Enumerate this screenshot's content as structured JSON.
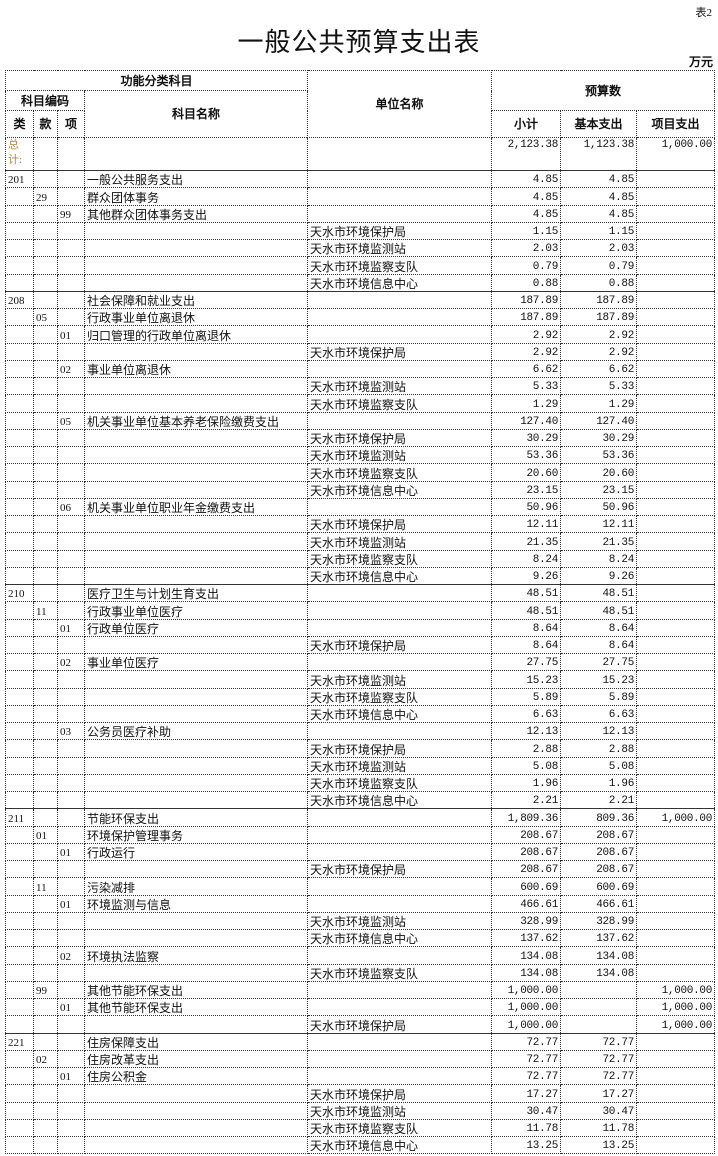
{
  "table_no": "表2",
  "title": "一般公共预算支出表",
  "unit": "万元",
  "headers": {
    "func_class": "功能分类科目",
    "subject_code": "科目编码",
    "lei": "类",
    "kuan": "款",
    "xiang": "项",
    "subject_name": "科目名称",
    "unit_name": "单位名称",
    "budget": "预算数",
    "subtotal": "小计",
    "basic": "基本支出",
    "project": "项目支出"
  },
  "total": {
    "label": "总计:",
    "subtotal": "2,123.38",
    "basic": "1,123.38",
    "project": "1,000.00"
  },
  "rows": [
    [
      "201",
      "",
      "",
      "一般公共服务支出",
      "",
      "4.85",
      "4.85",
      ""
    ],
    [
      "",
      "29",
      "",
      "群众团体事务",
      "",
      "4.85",
      "4.85",
      ""
    ],
    [
      "",
      "",
      "99",
      "其他群众团体事务支出",
      "",
      "4.85",
      "4.85",
      ""
    ],
    [
      "",
      "",
      "",
      "",
      "天水市环境保护局",
      "1.15",
      "1.15",
      ""
    ],
    [
      "",
      "",
      "",
      "",
      "天水市环境监测站",
      "2.03",
      "2.03",
      ""
    ],
    [
      "",
      "",
      "",
      "",
      "天水市环境监察支队",
      "0.79",
      "0.79",
      ""
    ],
    [
      "",
      "",
      "",
      "",
      "天水市环境信息中心",
      "0.88",
      "0.88",
      ""
    ],
    [
      "208",
      "",
      "",
      "社会保障和就业支出",
      "",
      "187.89",
      "187.89",
      ""
    ],
    [
      "",
      "05",
      "",
      "行政事业单位离退休",
      "",
      "187.89",
      "187.89",
      ""
    ],
    [
      "",
      "",
      "01",
      "归口管理的行政单位离退休",
      "",
      "2.92",
      "2.92",
      ""
    ],
    [
      "",
      "",
      "",
      "",
      "天水市环境保护局",
      "2.92",
      "2.92",
      ""
    ],
    [
      "",
      "",
      "02",
      "事业单位离退休",
      "",
      "6.62",
      "6.62",
      ""
    ],
    [
      "",
      "",
      "",
      "",
      "天水市环境监测站",
      "5.33",
      "5.33",
      ""
    ],
    [
      "",
      "",
      "",
      "",
      "天水市环境监察支队",
      "1.29",
      "1.29",
      ""
    ],
    [
      "",
      "",
      "05",
      "机关事业单位基本养老保险缴费支出",
      "",
      "127.40",
      "127.40",
      ""
    ],
    [
      "",
      "",
      "",
      "",
      "天水市环境保护局",
      "30.29",
      "30.29",
      ""
    ],
    [
      "",
      "",
      "",
      "",
      "天水市环境监测站",
      "53.36",
      "53.36",
      ""
    ],
    [
      "",
      "",
      "",
      "",
      "天水市环境监察支队",
      "20.60",
      "20.60",
      ""
    ],
    [
      "",
      "",
      "",
      "",
      "天水市环境信息中心",
      "23.15",
      "23.15",
      ""
    ],
    [
      "",
      "",
      "06",
      "机关事业单位职业年金缴费支出",
      "",
      "50.96",
      "50.96",
      ""
    ],
    [
      "",
      "",
      "",
      "",
      "天水市环境保护局",
      "12.11",
      "12.11",
      ""
    ],
    [
      "",
      "",
      "",
      "",
      "天水市环境监测站",
      "21.35",
      "21.35",
      ""
    ],
    [
      "",
      "",
      "",
      "",
      "天水市环境监察支队",
      "8.24",
      "8.24",
      ""
    ],
    [
      "",
      "",
      "",
      "",
      "天水市环境信息中心",
      "9.26",
      "9.26",
      ""
    ],
    [
      "210",
      "",
      "",
      "医疗卫生与计划生育支出",
      "",
      "48.51",
      "48.51",
      ""
    ],
    [
      "",
      "11",
      "",
      "行政事业单位医疗",
      "",
      "48.51",
      "48.51",
      ""
    ],
    [
      "",
      "",
      "01",
      "行政单位医疗",
      "",
      "8.64",
      "8.64",
      ""
    ],
    [
      "",
      "",
      "",
      "",
      "天水市环境保护局",
      "8.64",
      "8.64",
      ""
    ],
    [
      "",
      "",
      "02",
      "事业单位医疗",
      "",
      "27.75",
      "27.75",
      ""
    ],
    [
      "",
      "",
      "",
      "",
      "天水市环境监测站",
      "15.23",
      "15.23",
      ""
    ],
    [
      "",
      "",
      "",
      "",
      "天水市环境监察支队",
      "5.89",
      "5.89",
      ""
    ],
    [
      "",
      "",
      "",
      "",
      "天水市环境信息中心",
      "6.63",
      "6.63",
      ""
    ],
    [
      "",
      "",
      "03",
      "公务员医疗补助",
      "",
      "12.13",
      "12.13",
      ""
    ],
    [
      "",
      "",
      "",
      "",
      "天水市环境保护局",
      "2.88",
      "2.88",
      ""
    ],
    [
      "",
      "",
      "",
      "",
      "天水市环境监测站",
      "5.08",
      "5.08",
      ""
    ],
    [
      "",
      "",
      "",
      "",
      "天水市环境监察支队",
      "1.96",
      "1.96",
      ""
    ],
    [
      "",
      "",
      "",
      "",
      "天水市环境信息中心",
      "2.21",
      "2.21",
      ""
    ],
    [
      "211",
      "",
      "",
      "节能环保支出",
      "",
      "1,809.36",
      "809.36",
      "1,000.00"
    ],
    [
      "",
      "01",
      "",
      "环境保护管理事务",
      "",
      "208.67",
      "208.67",
      ""
    ],
    [
      "",
      "",
      "01",
      "行政运行",
      "",
      "208.67",
      "208.67",
      ""
    ],
    [
      "",
      "",
      "",
      "",
      "天水市环境保护局",
      "208.67",
      "208.67",
      ""
    ],
    [
      "",
      "11",
      "",
      "污染减排",
      "",
      "600.69",
      "600.69",
      ""
    ],
    [
      "",
      "",
      "01",
      "环境监测与信息",
      "",
      "466.61",
      "466.61",
      ""
    ],
    [
      "",
      "",
      "",
      "",
      "天水市环境监测站",
      "328.99",
      "328.99",
      ""
    ],
    [
      "",
      "",
      "",
      "",
      "天水市环境信息中心",
      "137.62",
      "137.62",
      ""
    ],
    [
      "",
      "",
      "02",
      "环境执法监察",
      "",
      "134.08",
      "134.08",
      ""
    ],
    [
      "",
      "",
      "",
      "",
      "天水市环境监察支队",
      "134.08",
      "134.08",
      ""
    ],
    [
      "",
      "99",
      "",
      "其他节能环保支出",
      "",
      "1,000.00",
      "",
      "1,000.00"
    ],
    [
      "",
      "",
      "01",
      "其他节能环保支出",
      "",
      "1,000.00",
      "",
      "1,000.00"
    ],
    [
      "",
      "",
      "",
      "",
      "天水市环境保护局",
      "1,000.00",
      "",
      "1,000.00"
    ],
    [
      "221",
      "",
      "",
      "住房保障支出",
      "",
      "72.77",
      "72.77",
      ""
    ],
    [
      "",
      "02",
      "",
      "住房改革支出",
      "",
      "72.77",
      "72.77",
      ""
    ],
    [
      "",
      "",
      "01",
      "住房公积金",
      "",
      "72.77",
      "72.77",
      ""
    ],
    [
      "",
      "",
      "",
      "",
      "天水市环境保护局",
      "17.27",
      "17.27",
      ""
    ],
    [
      "",
      "",
      "",
      "",
      "天水市环境监测站",
      "30.47",
      "30.47",
      ""
    ],
    [
      "",
      "",
      "",
      "",
      "天水市环境监察支队",
      "11.78",
      "11.78",
      ""
    ],
    [
      "",
      "",
      "",
      "",
      "天水市环境信息中心",
      "13.25",
      "13.25",
      ""
    ]
  ]
}
